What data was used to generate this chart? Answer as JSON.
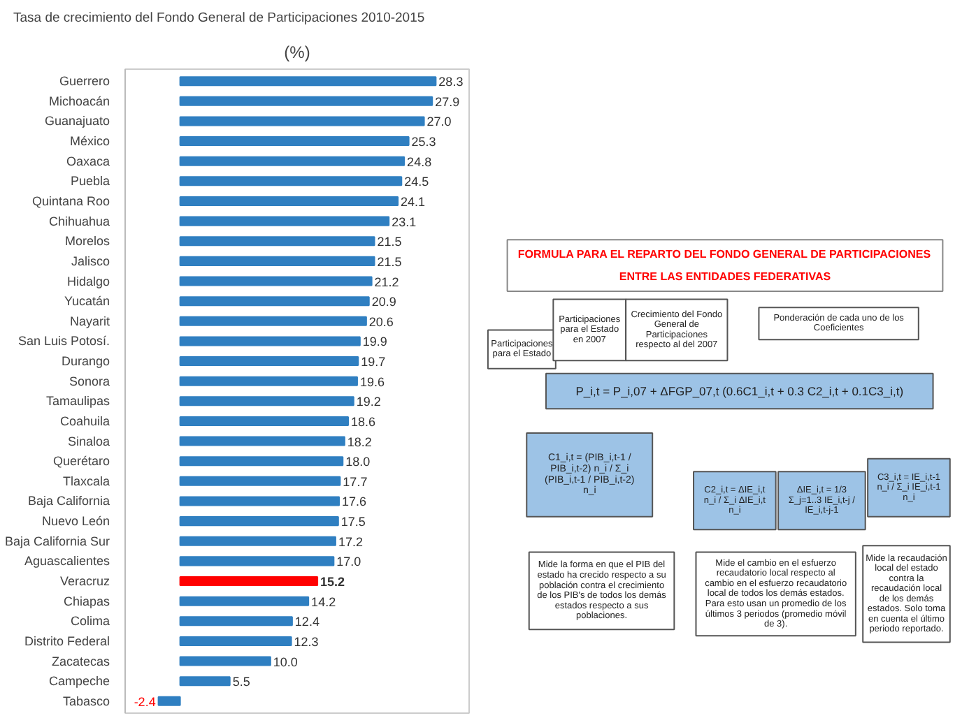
{
  "chart_data": [
    {
      "type": "bar",
      "orientation": "horizontal",
      "title": "Tasa de crecimiento del Fondo General de Participaciones 2010-2015",
      "subtitle": "(%)",
      "tick_labels": "y",
      "data_labels": true,
      "categories": [
        "Guerrero",
        "Michoacán",
        "Guanajuato",
        "México",
        "Oaxaca",
        "Puebla",
        "Quintana Roo",
        "Chihuahua",
        "Morelos",
        "Jalisco",
        "Hidalgo",
        "Yucatán",
        "Nayarit",
        "San Luis Potosí.",
        "Durango",
        "Sonora",
        "Tamaulipas",
        "Coahuila",
        "Sinaloa",
        "Querétaro",
        "Tlaxcala",
        "Baja California",
        "Nuevo León",
        "Baja California Sur",
        "Aguascalientes",
        "Veracruz",
        "Chiapas",
        "Colima",
        "Distrito Federal",
        "Zacatecas",
        "Campeche",
        "Tabasco"
      ],
      "values": [
        28.3,
        27.9,
        27.0,
        25.3,
        24.8,
        24.5,
        24.1,
        23.1,
        21.5,
        21.5,
        21.2,
        20.9,
        20.6,
        19.9,
        19.7,
        19.6,
        19.2,
        18.6,
        18.2,
        18.0,
        17.7,
        17.6,
        17.5,
        17.2,
        17.0,
        15.2,
        14.2,
        12.4,
        12.3,
        10.0,
        5.5,
        -2.4
      ],
      "value_labels": [
        "28.3",
        "27.9",
        "27.0",
        "25.3",
        "24.8",
        "24.5",
        "24.1",
        "23.1",
        "21.5",
        "21.5",
        "21.2",
        "20.9",
        "20.6",
        "19.9",
        "19.7",
        "19.6",
        "19.2",
        "18.6",
        "18.2",
        "18.0",
        "17.7",
        "17.6",
        "17.5",
        "17.2",
        "17.0",
        "15.2",
        "14.2",
        "12.4",
        "12.3",
        "10.0",
        "5.5",
        "-2.4"
      ],
      "colors": [
        "#2f7fc1",
        "#2f7fc1",
        "#2f7fc1",
        "#2f7fc1",
        "#2f7fc1",
        "#2f7fc1",
        "#2f7fc1",
        "#2f7fc1",
        "#2f7fc1",
        "#2f7fc1",
        "#2f7fc1",
        "#2f7fc1",
        "#2f7fc1",
        "#2f7fc1",
        "#2f7fc1",
        "#2f7fc1",
        "#2f7fc1",
        "#2f7fc1",
        "#2f7fc1",
        "#2f7fc1",
        "#2f7fc1",
        "#2f7fc1",
        "#2f7fc1",
        "#2f7fc1",
        "#2f7fc1",
        "#ff0000",
        "#2f7fc1",
        "#2f7fc1",
        "#2f7fc1",
        "#2f7fc1",
        "#2f7fc1",
        "#2f7fc1"
      ]
    },
    {
      "type": "other",
      "title": "FORMULA PARA EL REPARTO DEL FONDO GENERAL DE PARTICIPACIONES ENTRE LAS ENTIDADES FEDERATIVAS",
      "annotations": [
        "Participaciones para el Estado",
        "Participaciones para el Estado en 2007",
        "Crecimiento del Fondo General de Participaciones respecto al del 2007",
        "Ponderación de cada uno de los Coeficientes",
        "P_i,t = P_i,07 + ΔFGP_07,t (0.6C1_i,t + 0.3 C2_i,t + 0.1C3_i,t)",
        "C1_i,t = (PIB_i,t-1 / PIB_i,t-2) n_i / Σ_i (PIB_i,t-1 / PIB_i,t-2) n_i",
        "C2_i,t = ΔIE_i,t n_i / Σ_i ΔIE_i,t n_i",
        "ΔIE_i,t = 1/3 Σ_j=1..3 IE_i,t-j / IE_i,t-j-1",
        "C3_i,t = IE_i,t-1 n_i / Σ_i IE_i,t-1 n_i",
        "Mide la forma en que el PIB del estado ha crecido respecto a su población contra el crecimiento de los PIB's de todos los demás estados respecto a sus poblaciones.",
        "Mide el cambio en el esfuerzo recaudatorio local respecto al cambio en el esfuerzo recaudatorio local de todos los demás estados. Para esto usan un promedio de los últimos 3 periodos (promedio móvil de 3).",
        "Mide la recaudación local del estado contra la recaudación local de los demás estados. Solo toma en cuenta el último periodo reportado."
      ]
    }
  ]
}
